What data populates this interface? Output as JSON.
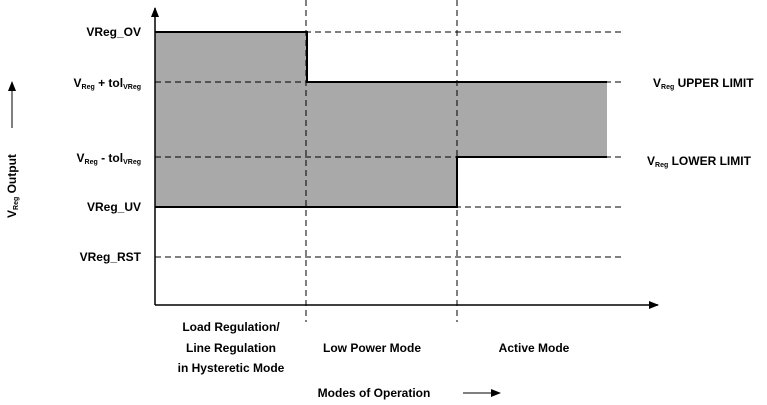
{
  "levels": [
    {
      "label": "VReg_OV"
    },
    {
      "parts": [
        "V",
        "Reg",
        " + tol",
        "VReg"
      ]
    },
    {
      "parts": [
        "V",
        "Reg",
        " - tol",
        "VReg"
      ]
    },
    {
      "label": "VReg_UV"
    },
    {
      "label": "VReg_RST"
    }
  ],
  "limits": [
    {
      "parts": [
        "V",
        "Reg",
        " UPPER LIMIT"
      ]
    },
    {
      "parts": [
        "V",
        "Reg",
        " LOWER LIMIT"
      ]
    }
  ],
  "y_axis": {
    "parts": [
      "V",
      "Reg",
      " Output"
    ]
  },
  "modes": [
    [
      "Load Regulation/",
      "Line Regulation",
      "in Hysteretic Mode"
    ],
    [
      "Low Power Mode"
    ],
    [
      "Active Mode"
    ]
  ],
  "x_axis": {
    "label": "Modes of Operation"
  }
}
